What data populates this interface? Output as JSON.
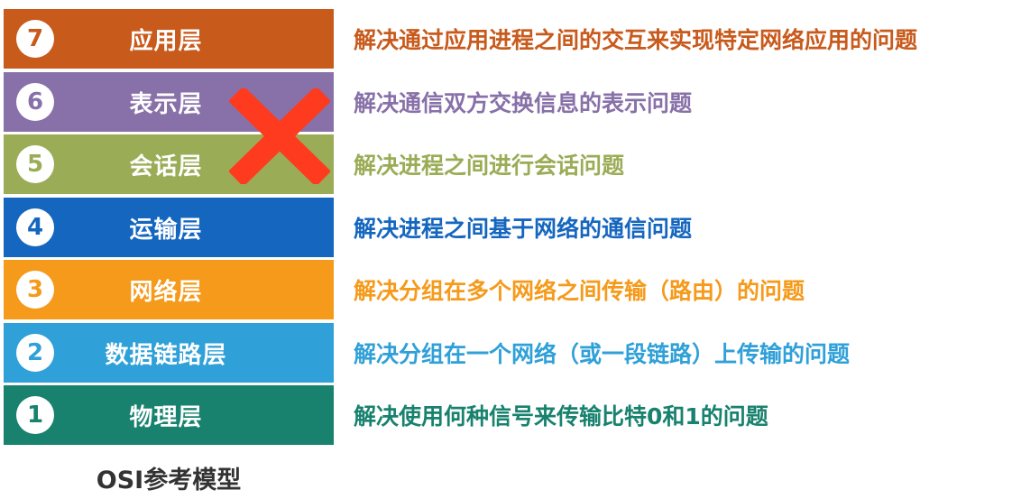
{
  "layers": [
    {
      "number": "7",
      "name": "应用层",
      "description": "解决通过应用进程之间的交互来实现特定网络应用的问题",
      "color": "#c85a1c",
      "text_color": "#c85a1c"
    },
    {
      "number": "6",
      "name": "表示层",
      "description": "解决通信双方交换信息的表示问题",
      "color": "#8870a8",
      "text_color": "#8870a8"
    },
    {
      "number": "5",
      "name": "会话层",
      "description": "解决进程之间进行会话问题",
      "color": "#9aac56",
      "text_color": "#9aac56"
    },
    {
      "number": "4",
      "name": "运输层",
      "description": "解决进程之间基于网络的通信问题",
      "color": "#1466bf",
      "text_color": "#1466bf"
    },
    {
      "number": "3",
      "name": "网络层",
      "description": "解决分组在多个网络之间传输（路由）的问题",
      "color": "#f59a1a",
      "text_color": "#f59a1a"
    },
    {
      "number": "2",
      "name": "数据链路层",
      "description": "解决分组在一个网络（或一段链路）上传输的问题",
      "color": "#2fa0d8",
      "text_color": "#2fa0d8"
    },
    {
      "number": "1",
      "name": "物理层",
      "description": "解决使用何种信号来传输比特0和1的问题",
      "color": "#18826e",
      "text_color": "#18826e"
    }
  ],
  "caption": "OSI参考模型",
  "cross_color": "#ff3b1f"
}
